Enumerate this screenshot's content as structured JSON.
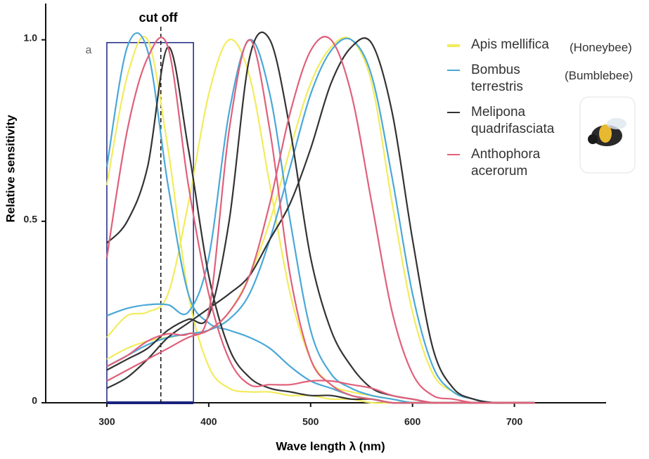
{
  "chart_data": {
    "type": "line",
    "xlabel": "Wave length λ (nm)",
    "ylabel": "Relative sensitivity",
    "annotation": "cut off",
    "cutoff": 353,
    "panel_label": "a",
    "highlight_x": [
      300,
      385
    ],
    "x": [
      300,
      320,
      340,
      360,
      380,
      400,
      420,
      440,
      460,
      480,
      500,
      520,
      540,
      560,
      580,
      600,
      620,
      640,
      660,
      680,
      700,
      720
    ],
    "xlim": [
      240,
      790
    ],
    "xticks": [
      300,
      400,
      500,
      600,
      700
    ],
    "ylim": [
      0,
      1.1
    ],
    "yticks": [
      0,
      0.5,
      {
        "value": 1,
        "label": "1.0"
      }
    ],
    "series": [
      {
        "name": "Apis mellifica",
        "common_name": "(Honeybee)",
        "color": "#f2ec5c",
        "values": [
          [
            0.6,
            0.9,
            1.0,
            0.7,
            0.3,
            0.1,
            0.04,
            0.03,
            0.03,
            0.02,
            0.02,
            0.01,
            0.01,
            0,
            0,
            0,
            0,
            0,
            0,
            0,
            0,
            0
          ],
          [
            0.18,
            0.24,
            0.25,
            0.3,
            0.55,
            0.85,
            1.0,
            0.9,
            0.6,
            0.3,
            0.12,
            0.05,
            0.03,
            0.02,
            0.01,
            0,
            0,
            0,
            0,
            0,
            0,
            0
          ],
          [
            0.12,
            0.15,
            0.17,
            0.18,
            0.19,
            0.2,
            0.25,
            0.35,
            0.5,
            0.7,
            0.88,
            0.98,
            1.0,
            0.88,
            0.55,
            0.25,
            0.08,
            0.03,
            0.01,
            0,
            0,
            0
          ]
        ]
      },
      {
        "name": "Bombus terrestris",
        "common_name": "(Bumblebee)",
        "color": "#4aa8d8",
        "values": [
          [
            0.65,
            0.98,
            0.97,
            0.6,
            0.3,
            0.22,
            0.2,
            0.18,
            0.15,
            0.1,
            0.06,
            0.04,
            0.02,
            0.01,
            0,
            0,
            0,
            0,
            0,
            0,
            0,
            0
          ],
          [
            0.24,
            0.26,
            0.27,
            0.27,
            0.25,
            0.4,
            0.8,
            1.0,
            0.85,
            0.5,
            0.2,
            0.08,
            0.04,
            0.02,
            0.01,
            0,
            0,
            0,
            0,
            0,
            0,
            0
          ],
          [
            0.1,
            0.13,
            0.16,
            0.18,
            0.19,
            0.2,
            0.23,
            0.3,
            0.45,
            0.65,
            0.85,
            0.97,
            1.0,
            0.9,
            0.62,
            0.3,
            0.1,
            0.03,
            0.01,
            0,
            0,
            0
          ]
        ]
      },
      {
        "name": "Melipona quadrifasciata",
        "color": "#333333",
        "values": [
          [
            0.44,
            0.5,
            0.65,
            0.98,
            0.7,
            0.35,
            0.15,
            0.07,
            0.04,
            0.03,
            0.02,
            0.02,
            0.01,
            0.01,
            0,
            0,
            0,
            0,
            0,
            0,
            0,
            0
          ],
          [
            0.09,
            0.12,
            0.15,
            0.2,
            0.23,
            0.24,
            0.5,
            0.95,
            1.0,
            0.75,
            0.4,
            0.2,
            0.1,
            0.04,
            0.02,
            0.01,
            0,
            0,
            0,
            0,
            0,
            0
          ],
          [
            0.04,
            0.07,
            0.12,
            0.18,
            0.22,
            0.26,
            0.3,
            0.35,
            0.45,
            0.55,
            0.7,
            0.88,
            0.98,
            0.99,
            0.8,
            0.45,
            0.15,
            0.04,
            0.01,
            0,
            0,
            0
          ]
        ]
      },
      {
        "name": "Anthophora acerorum",
        "color": "#e0607a",
        "values": [
          [
            0.4,
            0.75,
            0.95,
            0.98,
            0.6,
            0.3,
            0.12,
            0.05,
            0.05,
            0.05,
            0.06,
            0.06,
            0.05,
            0.04,
            0.02,
            0.01,
            0,
            0,
            0,
            0,
            0,
            0
          ],
          [
            0.1,
            0.13,
            0.17,
            0.19,
            0.19,
            0.25,
            0.75,
            1.0,
            0.75,
            0.35,
            0.12,
            0.05,
            0.02,
            0.01,
            0,
            0,
            0,
            0,
            0,
            0,
            0,
            0
          ],
          [
            0.06,
            0.09,
            0.12,
            0.15,
            0.18,
            0.2,
            0.25,
            0.35,
            0.55,
            0.8,
            0.97,
            1.0,
            0.85,
            0.55,
            0.25,
            0.08,
            0.02,
            0.01,
            0,
            0,
            0,
            0
          ]
        ]
      }
    ]
  }
}
